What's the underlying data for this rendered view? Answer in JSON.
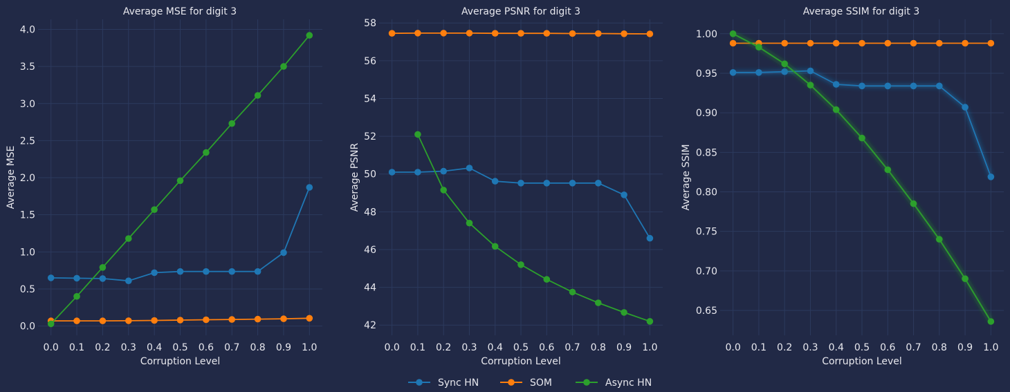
{
  "colors": {
    "background": "#212946",
    "grid": "#2c3a5e",
    "text": "#e8e8ee",
    "sync_hn": "#1f77b4",
    "som": "#ff7f0e",
    "async_hn": "#2ca02c"
  },
  "legend": [
    {
      "label": "Sync HN",
      "color": "#1f77b4"
    },
    {
      "label": "SOM",
      "color": "#ff7f0e"
    },
    {
      "label": "Async HN",
      "color": "#2ca02c"
    }
  ],
  "chart_data": [
    {
      "type": "line",
      "title": "Average MSE for digit 3",
      "xlabel": "Corruption Level",
      "ylabel": "Average MSE",
      "x": [
        0.0,
        0.1,
        0.2,
        0.3,
        0.4,
        0.5,
        0.6,
        0.7,
        0.8,
        0.9,
        1.0
      ],
      "xticks": [
        "0.0",
        "0.1",
        "0.2",
        "0.3",
        "0.4",
        "0.5",
        "0.6",
        "0.7",
        "0.8",
        "0.9",
        "1.0"
      ],
      "xlim": [
        -0.05,
        1.05
      ],
      "ylim": [
        -0.125,
        4.135
      ],
      "yticks": [
        "0.0",
        "0.5",
        "1.0",
        "1.5",
        "2.0",
        "2.5",
        "3.0",
        "3.5",
        "4.0"
      ],
      "ytick_values": [
        0.0,
        0.5,
        1.0,
        1.5,
        2.0,
        2.5,
        3.0,
        3.5,
        4.0
      ],
      "grid": true,
      "series": [
        {
          "name": "Sync HN",
          "color": "#1f77b4",
          "values": [
            0.65,
            0.645,
            0.64,
            0.61,
            0.72,
            0.735,
            0.735,
            0.735,
            0.735,
            0.99,
            1.87
          ]
        },
        {
          "name": "SOM",
          "color": "#ff7f0e",
          "values": [
            0.07,
            0.07,
            0.07,
            0.072,
            0.075,
            0.08,
            0.085,
            0.088,
            0.093,
            0.098,
            0.105
          ]
        },
        {
          "name": "Async HN",
          "color": "#2ca02c",
          "values": [
            0.03,
            0.4,
            0.79,
            1.18,
            1.57,
            1.96,
            2.34,
            2.73,
            3.11,
            3.5,
            3.92
          ]
        }
      ]
    },
    {
      "type": "line",
      "title": "Average PSNR for digit 3",
      "xlabel": "Corruption Level",
      "ylabel": "Average PSNR",
      "x": [
        0.0,
        0.1,
        0.2,
        0.3,
        0.4,
        0.5,
        0.6,
        0.7,
        0.8,
        0.9,
        1.0
      ],
      "xticks": [
        "0.0",
        "0.1",
        "0.2",
        "0.3",
        "0.4",
        "0.5",
        "0.6",
        "0.7",
        "0.8",
        "0.9",
        "1.0"
      ],
      "xlim": [
        -0.05,
        1.05
      ],
      "ylim": [
        41.46,
        58.19
      ],
      "yticks": [
        "42",
        "44",
        "46",
        "48",
        "50",
        "52",
        "54",
        "56",
        "58"
      ],
      "ytick_values": [
        42,
        44,
        46,
        48,
        50,
        52,
        54,
        56,
        58
      ],
      "grid": true,
      "series": [
        {
          "name": "Sync HN",
          "color": "#1f77b4",
          "values": [
            50.1,
            50.1,
            50.15,
            50.32,
            49.62,
            49.52,
            49.52,
            49.52,
            49.52,
            48.9,
            46.6
          ]
        },
        {
          "name": "SOM",
          "color": "#ff7f0e",
          "values": [
            57.45,
            57.46,
            57.46,
            57.46,
            57.45,
            57.45,
            57.45,
            57.44,
            57.44,
            57.43,
            57.42
          ]
        },
        {
          "name": "Async HN",
          "color": "#2ca02c",
          "values": [
            null,
            52.1,
            49.15,
            47.4,
            46.17,
            45.2,
            44.42,
            43.75,
            43.18,
            42.67,
            42.2
          ]
        }
      ]
    },
    {
      "type": "line",
      "title": "Average SSIM for digit 3",
      "xlabel": "Corruption Level",
      "ylabel": "Average SSIM",
      "x": [
        0.0,
        0.1,
        0.2,
        0.3,
        0.4,
        0.5,
        0.6,
        0.7,
        0.8,
        0.9,
        1.0
      ],
      "xticks": [
        "0.0",
        "0.1",
        "0.2",
        "0.3",
        "0.4",
        "0.5",
        "0.6",
        "0.7",
        "0.8",
        "0.9",
        "1.0"
      ],
      "xlim": [
        -0.05,
        1.05
      ],
      "ylim": [
        0.6185,
        1.0182
      ],
      "yticks": [
        "0.65",
        "0.70",
        "0.75",
        "0.80",
        "0.85",
        "0.90",
        "0.95",
        "1.00"
      ],
      "ytick_values": [
        0.65,
        0.7,
        0.75,
        0.8,
        0.85,
        0.9,
        0.95,
        1.0
      ],
      "grid": true,
      "series": [
        {
          "name": "Sync HN",
          "color": "#1f77b4",
          "values": [
            0.951,
            0.951,
            0.952,
            0.953,
            0.936,
            0.934,
            0.934,
            0.934,
            0.934,
            0.907,
            0.819
          ]
        },
        {
          "name": "SOM",
          "color": "#ff7f0e",
          "values": [
            0.988,
            0.988,
            0.988,
            0.988,
            0.988,
            0.988,
            0.988,
            0.988,
            0.988,
            0.988,
            0.988
          ]
        },
        {
          "name": "Async HN",
          "color": "#2ca02c",
          "values": [
            1.0,
            0.983,
            0.962,
            0.935,
            0.904,
            0.868,
            0.828,
            0.785,
            0.74,
            0.69,
            0.636
          ]
        }
      ]
    }
  ]
}
